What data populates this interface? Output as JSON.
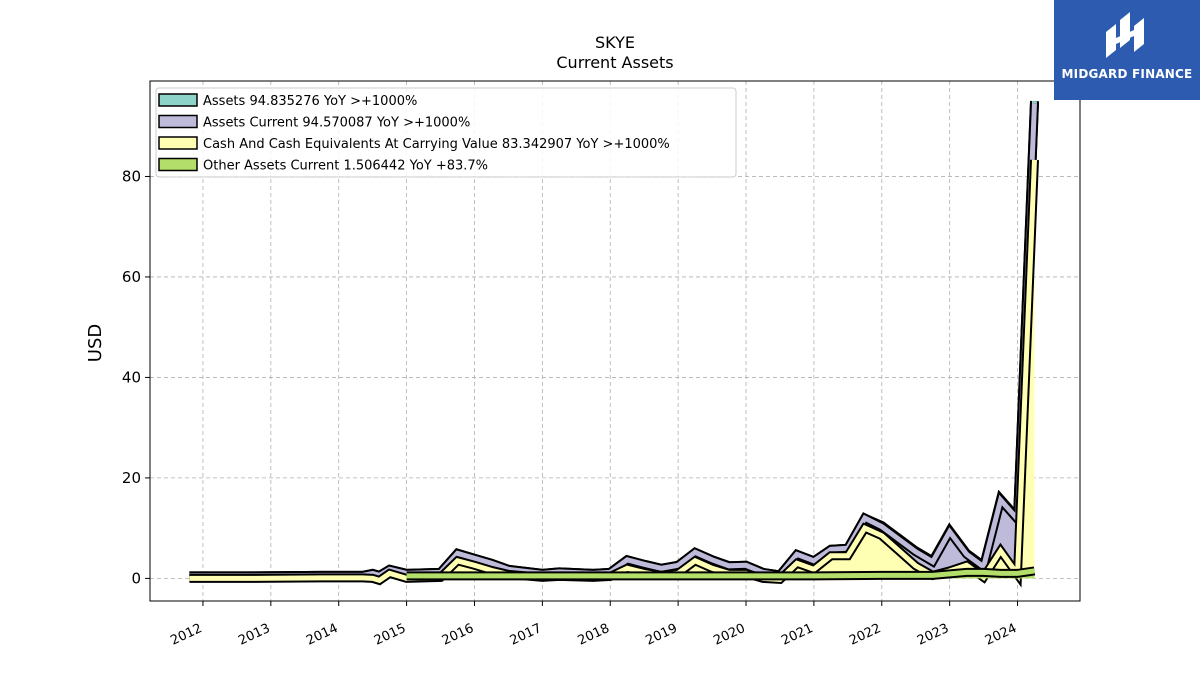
{
  "chart_data": {
    "type": "area",
    "title": "SKYE",
    "subtitle": "Current  Assets",
    "ylabel": "USD",
    "xlabel": "",
    "ylim": [
      -4.5,
      99
    ],
    "xlim": [
      2011.22,
      2024.92
    ],
    "yticks": [
      0,
      20,
      40,
      60,
      80
    ],
    "xticks": [
      "2012",
      "2013",
      "2014",
      "2015",
      "2016",
      "2017",
      "2018",
      "2019",
      "2020",
      "2021",
      "2022",
      "2023",
      "2024"
    ],
    "grid": true,
    "legend_position": "top-left",
    "series": [
      {
        "name": "Assets  94.835276 YoY >+1000%",
        "color": "#8dd3c7",
        "x": [
          2011.8,
          2012.75,
          2013.75,
          2014.35,
          2014.5,
          2014.6,
          2014.75,
          2015.0,
          2015.5,
          2015.75,
          2016.0,
          2016.25,
          2016.5,
          2017.0,
          2017.25,
          2017.75,
          2018.0,
          2018.25,
          2018.5,
          2018.75,
          2019.0,
          2019.25,
          2019.5,
          2019.75,
          2020.0,
          2020.25,
          2020.5,
          2020.75,
          2021.0,
          2021.25,
          2021.5,
          2021.75,
          2022.0,
          2022.25,
          2022.5,
          2022.75,
          2023.0,
          2023.25,
          2023.5,
          2023.75,
          2024.0,
          2024.25
        ],
        "values": [
          0.5,
          0.5,
          0.6,
          0.6,
          1.0,
          0.6,
          1.8,
          1.0,
          1.2,
          5.0,
          4.0,
          3.0,
          1.8,
          1.0,
          1.3,
          1.0,
          1.2,
          3.7,
          2.8,
          2.0,
          2.6,
          5.2,
          3.7,
          2.5,
          2.6,
          1.2,
          0.7,
          4.8,
          3.5,
          5.8,
          6.0,
          12.0,
          10.5,
          8.0,
          5.5,
          3.5,
          9.5,
          5.0,
          2.5,
          15.8,
          12.0,
          95.0
        ]
      },
      {
        "name": "Assets Current  94.570087 YoY >+1000%",
        "color": "#bebada",
        "x": [
          2011.8,
          2012.75,
          2013.75,
          2014.35,
          2014.5,
          2014.6,
          2014.75,
          2015.0,
          2015.5,
          2015.75,
          2016.0,
          2016.25,
          2016.5,
          2017.0,
          2017.25,
          2017.75,
          2018.0,
          2018.25,
          2018.5,
          2018.75,
          2019.0,
          2019.25,
          2019.5,
          2019.75,
          2020.0,
          2020.25,
          2020.5,
          2020.75,
          2021.0,
          2021.25,
          2021.5,
          2021.75,
          2022.0,
          2022.25,
          2022.5,
          2022.75,
          2023.0,
          2023.25,
          2023.5,
          2023.75,
          2024.0,
          2024.25
        ],
        "values": [
          0.5,
          0.5,
          0.6,
          0.6,
          1.0,
          0.6,
          1.8,
          1.0,
          1.2,
          5.0,
          4.0,
          3.0,
          1.8,
          1.0,
          1.3,
          1.0,
          1.2,
          3.7,
          2.8,
          2.0,
          2.6,
          5.2,
          3.7,
          2.5,
          2.6,
          1.2,
          0.7,
          4.8,
          3.5,
          5.8,
          6.0,
          12.0,
          10.3,
          7.8,
          5.3,
          3.3,
          9.3,
          4.8,
          2.3,
          15.6,
          11.8,
          94.6
        ]
      },
      {
        "name": "Cash And Cash Equivalents At Carrying Value  83.342907 YoY >+1000%",
        "color": "#ffffb3",
        "x": [
          2011.8,
          2012.75,
          2013.75,
          2014.35,
          2014.5,
          2014.6,
          2014.75,
          2015.0,
          2015.5,
          2015.75,
          2016.0,
          2016.25,
          2016.5,
          2017.0,
          2017.25,
          2017.75,
          2018.0,
          2018.25,
          2018.5,
          2018.75,
          2019.0,
          2019.25,
          2019.5,
          2019.75,
          2020.0,
          2020.25,
          2020.5,
          2020.75,
          2021.0,
          2021.25,
          2021.5,
          2021.75,
          2022.0,
          2022.25,
          2022.5,
          2022.75,
          2023.0,
          2023.25,
          2023.5,
          2023.75,
          2024.0,
          2024.25
        ],
        "values": [
          0.0,
          0.0,
          0.1,
          0.1,
          0.0,
          -0.4,
          1.0,
          0.0,
          0.2,
          3.5,
          2.6,
          1.6,
          0.8,
          0.2,
          0.4,
          0.2,
          0.4,
          2.0,
          1.2,
          0.6,
          1.0,
          3.5,
          2.0,
          1.0,
          1.0,
          0.0,
          -0.2,
          3.0,
          1.8,
          4.5,
          4.5,
          10.0,
          8.5,
          5.5,
          2.5,
          0.6,
          1.5,
          2.6,
          0.2,
          5.5,
          0.8,
          83.3
        ]
      },
      {
        "name": "Other Assets Current  1.506442 YoY +83.7%",
        "color": "#b3de69",
        "x": [
          2015.0,
          2016.0,
          2017.0,
          2018.0,
          2019.0,
          2020.0,
          2021.0,
          2022.0,
          2022.5,
          2022.75,
          2023.0,
          2023.25,
          2023.5,
          2023.75,
          2024.0,
          2024.25
        ],
        "values": [
          0.5,
          0.5,
          0.5,
          0.5,
          0.5,
          0.5,
          0.5,
          0.6,
          0.6,
          0.6,
          0.9,
          1.2,
          1.2,
          1.0,
          1.0,
          1.5
        ]
      }
    ]
  },
  "logo": {
    "text": "MIDGARD FINANCE"
  }
}
